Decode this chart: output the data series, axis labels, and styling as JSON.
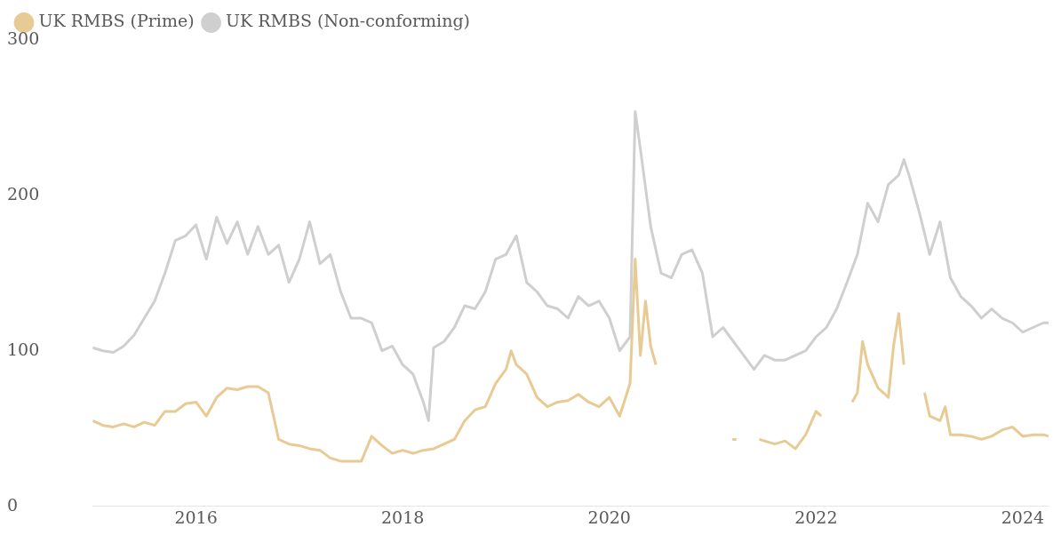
{
  "chart_data": {
    "type": "line",
    "legend": "top left",
    "grid": false,
    "marker": "none",
    "line_style": "solid",
    "xlim": [
      2015,
      2024.25
    ],
    "xticks": [
      2016,
      2018,
      2020,
      2022,
      2024
    ],
    "ylim": [
      0,
      300
    ],
    "yticks": [
      0,
      100,
      200,
      300
    ],
    "series": [
      {
        "name": "UK RMBS (Prime)",
        "color": "#e8cb94",
        "x": [
          2015,
          2015.1,
          2015.2,
          2015.3,
          2015.4,
          2015.5,
          2015.6,
          2015.7,
          2015.8,
          2015.9,
          2016,
          2016.1,
          2016.2,
          2016.3,
          2016.4,
          2016.5,
          2016.6,
          2016.7,
          2016.8,
          2016.9,
          2017,
          2017.1,
          2017.2,
          2017.3,
          2017.4,
          2017.5,
          2017.6,
          2017.7,
          2017.8,
          2017.9,
          2018,
          2018.1,
          2018.2,
          2018.3,
          2018.4,
          2018.5,
          2018.6,
          2018.7,
          2018.8,
          2018.9,
          2019,
          2019.05,
          2019.1,
          2019.2,
          2019.3,
          2019.4,
          2019.5,
          2019.6,
          2019.7,
          2019.8,
          2019.9,
          2020,
          2020.1,
          2020.2,
          2020.25,
          2020.3,
          2020.35,
          2020.4,
          2020.45,
          2020.8,
          2021.19,
          2021.23,
          2021.3,
          2021.45,
          2021.6,
          2021.7,
          2021.8,
          2021.9,
          2022,
          2022.05,
          2022.2,
          2022.35,
          2022.4,
          2022.45,
          2022.5,
          2022.6,
          2022.7,
          2022.75,
          2022.8,
          2022.85,
          2022.95,
          2023.05,
          2023.1,
          2023.2,
          2023.25,
          2023.3,
          2023.4,
          2023.5,
          2023.6,
          2023.7,
          2023.8,
          2023.9,
          2024,
          2024.1,
          2024.2,
          2024.25
        ],
        "values": [
          55,
          52,
          51,
          53,
          51,
          54,
          52,
          61,
          61,
          66,
          67,
          58,
          70,
          76,
          75,
          77,
          77,
          73,
          43,
          40,
          39,
          37,
          36,
          31,
          29,
          29,
          29,
          45,
          39,
          34,
          36,
          34,
          36,
          37,
          40,
          43,
          55,
          62,
          64,
          79,
          88,
          100,
          91,
          85,
          70,
          64,
          67,
          68,
          72,
          67,
          64,
          70,
          58,
          79,
          159,
          97,
          132,
          103,
          91,
          null,
          43,
          43,
          null,
          43,
          40,
          42,
          37,
          46,
          61,
          58,
          null,
          67,
          73,
          106,
          91,
          76,
          70,
          103,
          124,
          91,
          null,
          73,
          58,
          55,
          64,
          46,
          46,
          45,
          43,
          45,
          49,
          51,
          45,
          46,
          46,
          45
        ]
      },
      {
        "name": "UK RMBS (Non-conforming)",
        "color": "#cfcfcf",
        "x": [
          2015,
          2015.1,
          2015.2,
          2015.3,
          2015.4,
          2015.5,
          2015.6,
          2015.7,
          2015.8,
          2015.9,
          2016,
          2016.1,
          2016.2,
          2016.3,
          2016.4,
          2016.5,
          2016.6,
          2016.7,
          2016.8,
          2016.9,
          2017,
          2017.1,
          2017.2,
          2017.3,
          2017.4,
          2017.5,
          2017.6,
          2017.7,
          2017.8,
          2017.9,
          2018,
          2018.1,
          2018.2,
          2018.25,
          2018.3,
          2018.4,
          2018.5,
          2018.6,
          2018.7,
          2018.8,
          2018.9,
          2019,
          2019.1,
          2019.2,
          2019.3,
          2019.4,
          2019.5,
          2019.6,
          2019.7,
          2019.8,
          2019.9,
          2020,
          2020.1,
          2020.2,
          2020.25,
          2020.3,
          2020.4,
          2020.5,
          2020.6,
          2020.7,
          2020.8,
          2020.9,
          2021,
          2021.1,
          2021.2,
          2021.3,
          2021.4,
          2021.5,
          2021.6,
          2021.7,
          2021.8,
          2021.9,
          2022,
          2022.1,
          2022.2,
          2022.3,
          2022.4,
          2022.5,
          2022.6,
          2022.7,
          2022.8,
          2022.85,
          2022.9,
          2023,
          2023.1,
          2023.2,
          2023.3,
          2023.4,
          2023.5,
          2023.6,
          2023.7,
          2023.8,
          2023.9,
          2024,
          2024.1,
          2024.2,
          2024.25
        ],
        "values": [
          102,
          100,
          99,
          103,
          110,
          121,
          132,
          150,
          171,
          174,
          181,
          159,
          186,
          169,
          183,
          162,
          180,
          162,
          168,
          144,
          159,
          183,
          156,
          162,
          138,
          121,
          121,
          118,
          100,
          103,
          91,
          85,
          67,
          55,
          102,
          106,
          115,
          129,
          127,
          138,
          159,
          162,
          174,
          144,
          138,
          129,
          127,
          121,
          135,
          129,
          132,
          121,
          100,
          109,
          254,
          230,
          180,
          150,
          147,
          162,
          165,
          150,
          109,
          115,
          106,
          97,
          88,
          97,
          94,
          94,
          97,
          100,
          109,
          115,
          127,
          144,
          162,
          195,
          183,
          207,
          213,
          223,
          213,
          189,
          162,
          183,
          147,
          135,
          129,
          121,
          127,
          121,
          118,
          112,
          115,
          118,
          118
        ]
      }
    ]
  }
}
